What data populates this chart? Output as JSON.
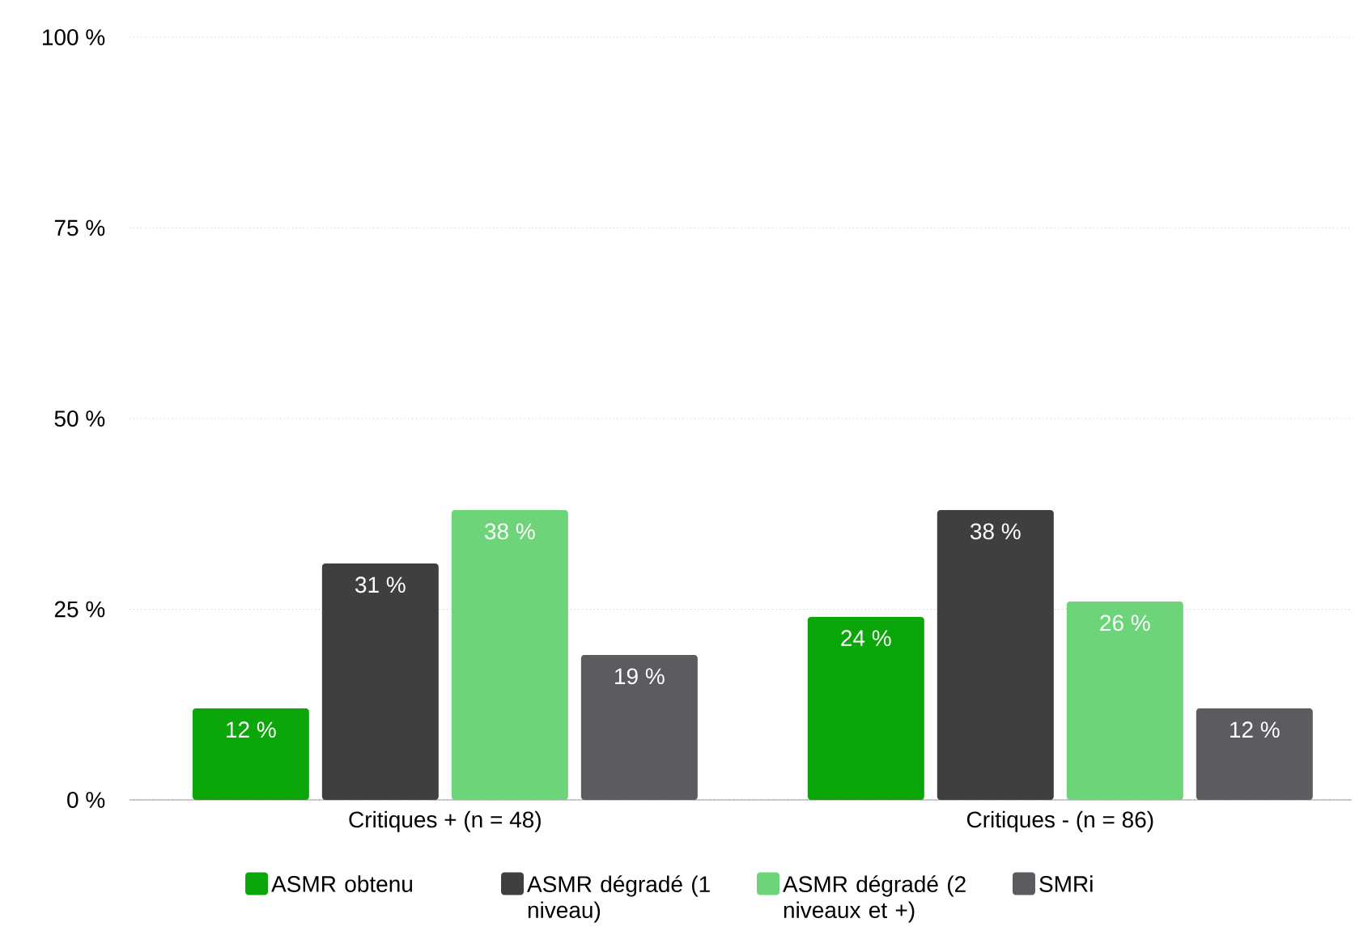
{
  "chart_data": {
    "type": "bar",
    "categories": [
      "Critiques + (n = 48)",
      "Critiques - (n = 86)"
    ],
    "series": [
      {
        "name": "ASMR obtenu",
        "color": "#0aa60a",
        "values": [
          12,
          24
        ],
        "value_labels": [
          "12 %",
          "24 %"
        ]
      },
      {
        "name": "ASMR dégradé (1 niveau)",
        "color": "#3f3f3f",
        "values": [
          31,
          38
        ],
        "value_labels": [
          "31 %",
          "38 %"
        ]
      },
      {
        "name": "ASMR dégradé (2 niveaux et +)",
        "color": "#6dd47a",
        "values": [
          38,
          26
        ],
        "value_labels": [
          "38 %",
          "26 %"
        ]
      },
      {
        "name": "SMRi",
        "color": "#5b5b60",
        "values": [
          19,
          12
        ],
        "value_labels": [
          "19 %",
          "12 %"
        ]
      }
    ],
    "ylim": [
      0,
      100
    ],
    "yticks": [
      {
        "value": 0,
        "label": "0 %"
      },
      {
        "value": 25,
        "label": "25 %"
      },
      {
        "value": 50,
        "label": "50 %"
      },
      {
        "value": 75,
        "label": "75 %"
      },
      {
        "value": 100,
        "label": "100 %"
      }
    ],
    "grid": "y",
    "legend": "bottom"
  }
}
